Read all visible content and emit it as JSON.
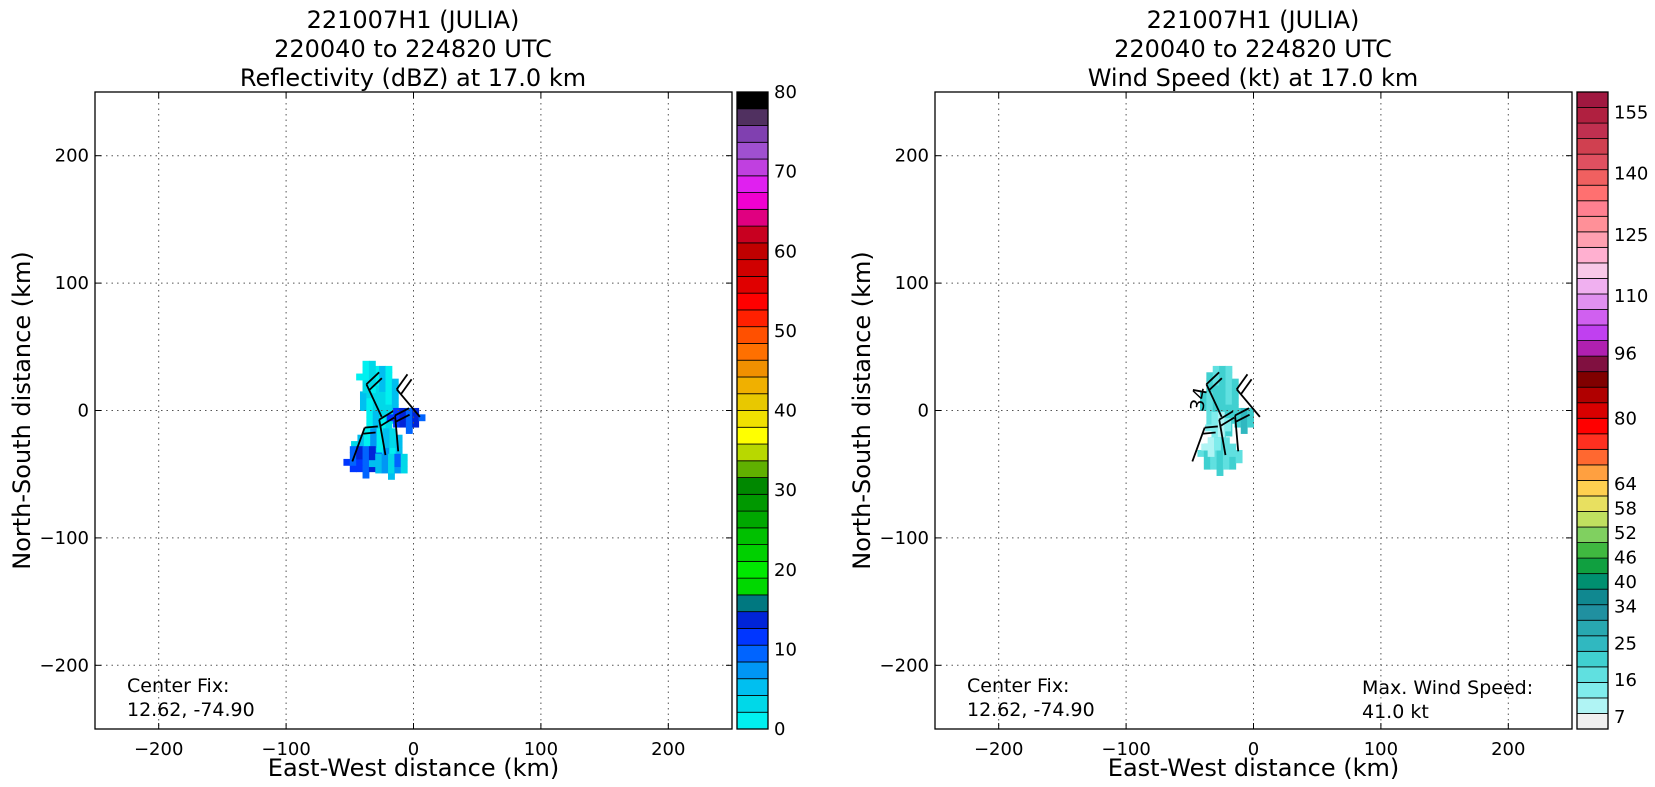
{
  "chart_data": [
    {
      "type": "heatmap",
      "title": [
        "221007H1 (JULIA)",
        "220040 to 224820 UTC",
        "Reflectivity (dBZ) at 17.0 km"
      ],
      "xlabel": "East-West distance (km)",
      "ylabel": "North-South distance (km)",
      "xlim": [
        -250,
        250
      ],
      "ylim": [
        -250,
        250
      ],
      "xticks": [
        -200,
        -100,
        0,
        100,
        200
      ],
      "yticks": [
        -200,
        -100,
        0,
        100,
        200
      ],
      "xtick_labels": [
        "−200",
        "−100",
        "0",
        "100",
        "200"
      ],
      "ytick_labels": [
        "−200",
        "−100",
        "0",
        "100",
        "200"
      ],
      "grid": true,
      "colorbar": {
        "min": 0,
        "max": 80,
        "colors": [
          "#00f0f0",
          "#00d8e8",
          "#00bff0",
          "#0096f5",
          "#0064ff",
          "#0036ff",
          "#0024d8",
          "#007880",
          "#00d800",
          "#00e800",
          "#00d000",
          "#00c000",
          "#00a800",
          "#009800",
          "#008800",
          "#60b000",
          "#b8d800",
          "#ffff00",
          "#f0e000",
          "#e8c800",
          "#f0b000",
          "#f09000",
          "#ff7000",
          "#ff5000",
          "#ff2000",
          "#ff0000",
          "#e00000",
          "#d00000",
          "#c00000",
          "#c80020",
          "#e00080",
          "#f000d0",
          "#e020f0",
          "#c040e0",
          "#a050d0",
          "#8040b0",
          "#503060",
          "#000000"
        ],
        "tick_values": [
          0,
          10,
          20,
          30,
          40,
          50,
          60,
          70,
          80
        ],
        "tick_labels": [
          "0",
          "10",
          "20",
          "30",
          "40",
          "50",
          "60",
          "70",
          "80"
        ]
      },
      "annotations": [
        {
          "lines": [
            "Center Fix:",
            "12.62, -74.90"
          ],
          "position": "bottom-left"
        }
      ],
      "blobs": [
        {
          "x": -28,
          "y": 5,
          "w": 28,
          "h": 60,
          "value": 3
        },
        {
          "x": -38,
          "y": 22,
          "w": 14,
          "h": 26,
          "value": 2
        },
        {
          "x": -8,
          "y": -8,
          "w": 26,
          "h": 20,
          "value": 12
        },
        {
          "x": -30,
          "y": -30,
          "w": 38,
          "h": 28,
          "value": 4
        },
        {
          "x": -42,
          "y": -42,
          "w": 26,
          "h": 22,
          "value": 11
        },
        {
          "x": -20,
          "y": -45,
          "w": 30,
          "h": 18,
          "value": 6
        }
      ],
      "wind_barbs": [
        {
          "x": -25,
          "y": -5,
          "dir": -25,
          "flags": 2
        },
        {
          "x": 5,
          "y": -5,
          "dir": -40,
          "flags": 2
        },
        {
          "x": -22,
          "y": -35,
          "dir": -10,
          "flags": 2
        },
        {
          "x": -48,
          "y": -40,
          "dir": 20,
          "flags": 2
        },
        {
          "x": -12,
          "y": -32,
          "dir": -5,
          "flags": 2
        }
      ]
    },
    {
      "type": "heatmap",
      "title": [
        "221007H1 (JULIA)",
        "220040 to 224820 UTC",
        "Wind Speed (kt) at 17.0 km"
      ],
      "xlabel": "East-West distance (km)",
      "ylabel": "North-South distance (km)",
      "xlim": [
        -250,
        250
      ],
      "ylim": [
        -250,
        250
      ],
      "xticks": [
        -200,
        -100,
        0,
        100,
        200
      ],
      "yticks": [
        -200,
        -100,
        0,
        100,
        200
      ],
      "xtick_labels": [
        "−200",
        "−100",
        "0",
        "100",
        "200"
      ],
      "ytick_labels": [
        "−200",
        "−100",
        "0",
        "100",
        "200"
      ],
      "grid": true,
      "colorbar": {
        "min": 4,
        "max": 160,
        "colors": [
          "#f0f0f0",
          "#b0f4f4",
          "#80ecec",
          "#60e0e0",
          "#40d0d0",
          "#30b8c0",
          "#28a8b0",
          "#2090a0",
          "#108890",
          "#009070",
          "#10a040",
          "#40b840",
          "#80d060",
          "#c0e060",
          "#e8e060",
          "#ffd050",
          "#ffa040",
          "#ff6830",
          "#ff3020",
          "#ff0000",
          "#d80000",
          "#b00000",
          "#800000",
          "#801040",
          "#b020b0",
          "#c040f0",
          "#d060f0",
          "#e090f0",
          "#f0b0f0",
          "#f8c8e8",
          "#ffb0d0",
          "#ffa0b0",
          "#ff9098",
          "#ff8090",
          "#ff7070",
          "#f06060",
          "#e05060",
          "#d04050",
          "#c03050",
          "#b02040",
          "#a01840"
        ],
        "tick_values": [
          7,
          16,
          25,
          34,
          40,
          46,
          52,
          58,
          64,
          80,
          96,
          110,
          125,
          140,
          155
        ],
        "tick_labels": [
          "7",
          "16",
          "25",
          "34",
          "40",
          "46",
          "52",
          "58",
          "64",
          "80",
          "96",
          "110",
          "125",
          "140",
          "155"
        ]
      },
      "contour_labels": [
        {
          "x": -38,
          "y": 8,
          "text": "34"
        }
      ],
      "annotations": [
        {
          "lines": [
            "Center Fix:",
            "12.62, -74.90"
          ],
          "position": "bottom-left"
        },
        {
          "lines": [
            "Max. Wind Speed:",
            "41.0 kt"
          ],
          "position": "bottom-right"
        }
      ],
      "blobs": [
        {
          "x": -28,
          "y": 5,
          "w": 28,
          "h": 60,
          "value": 20
        },
        {
          "x": -30,
          "y": -15,
          "w": 16,
          "h": 22,
          "value": 12
        },
        {
          "x": -10,
          "y": -10,
          "w": 20,
          "h": 16,
          "value": 22
        },
        {
          "x": -28,
          "y": -38,
          "w": 32,
          "h": 26,
          "value": 18
        },
        {
          "x": -35,
          "y": -30,
          "w": 12,
          "h": 12,
          "value": 10
        }
      ],
      "wind_barbs": [
        {
          "x": -25,
          "y": -5,
          "dir": -25,
          "flags": 2
        },
        {
          "x": 5,
          "y": -5,
          "dir": -40,
          "flags": 2
        },
        {
          "x": -22,
          "y": -35,
          "dir": -10,
          "flags": 2
        },
        {
          "x": -48,
          "y": -40,
          "dir": 20,
          "flags": 2
        },
        {
          "x": -12,
          "y": -32,
          "dir": -5,
          "flags": 2
        }
      ]
    }
  ]
}
